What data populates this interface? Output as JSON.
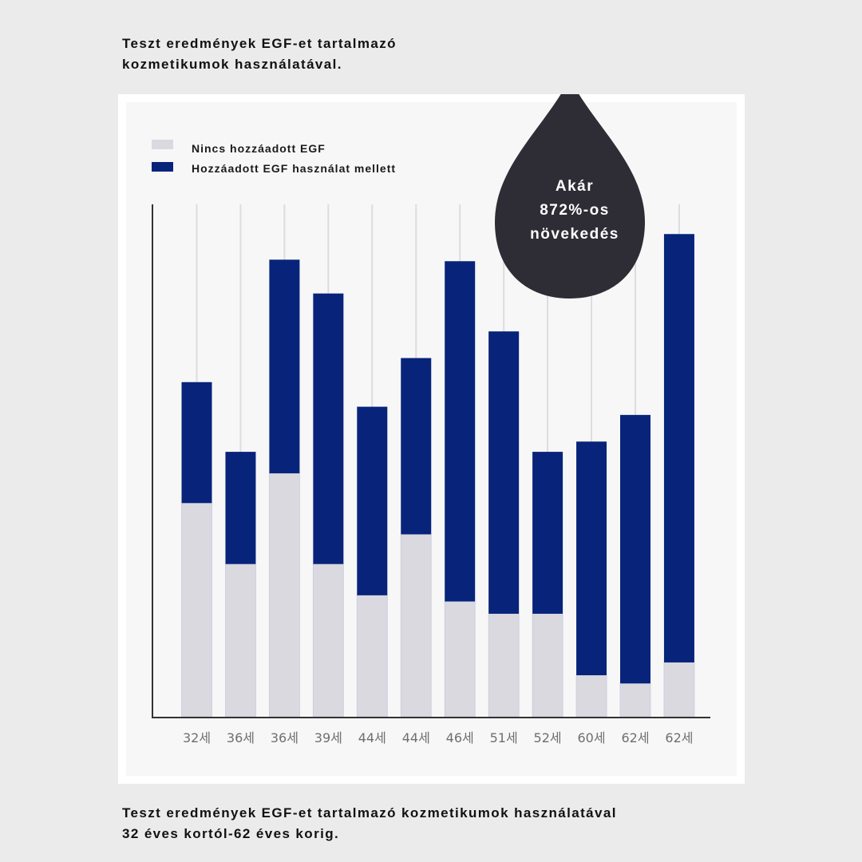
{
  "heading": {
    "line1": "Teszt eredmények EGF-et tartalmazó",
    "line2": "kozmetikumok használatával."
  },
  "footer": {
    "line1": "Teszt eredmények EGF-et tartalmazó kozmetikumok használatával",
    "line2": "32 éves kortól-62 éves korig."
  },
  "callout": {
    "line1": "Akár",
    "line2": "872%-os",
    "line3": "növekedés",
    "color": "#2e2d35"
  },
  "colors": {
    "base": "#d9d9df",
    "egf": "#07247a",
    "gridline": "#dddddd",
    "axis": "#333333"
  },
  "chart_data": {
    "type": "bar",
    "stacked": true,
    "categories": [
      "32세",
      "36세",
      "36세",
      "39세",
      "44세",
      "44세",
      "46세",
      "51세",
      "52세",
      "60세",
      "62세",
      "62세"
    ],
    "series": [
      {
        "name": "Nincs hozzáadott EGF",
        "values": [
          41.7,
          29.8,
          47.5,
          29.8,
          23.7,
          35.6,
          22.5,
          20.1,
          20.1,
          8.1,
          6.5,
          10.6
        ]
      },
      {
        "name": "Hozzáadott EGF használat mellett",
        "values": [
          23.6,
          21.9,
          41.7,
          52.8,
          36.8,
          34.4,
          66.4,
          55.1,
          31.6,
          45.6,
          52.4,
          83.6
        ]
      }
    ],
    "ylim": [
      0,
      100
    ],
    "grid": true,
    "legend": "top-left"
  }
}
